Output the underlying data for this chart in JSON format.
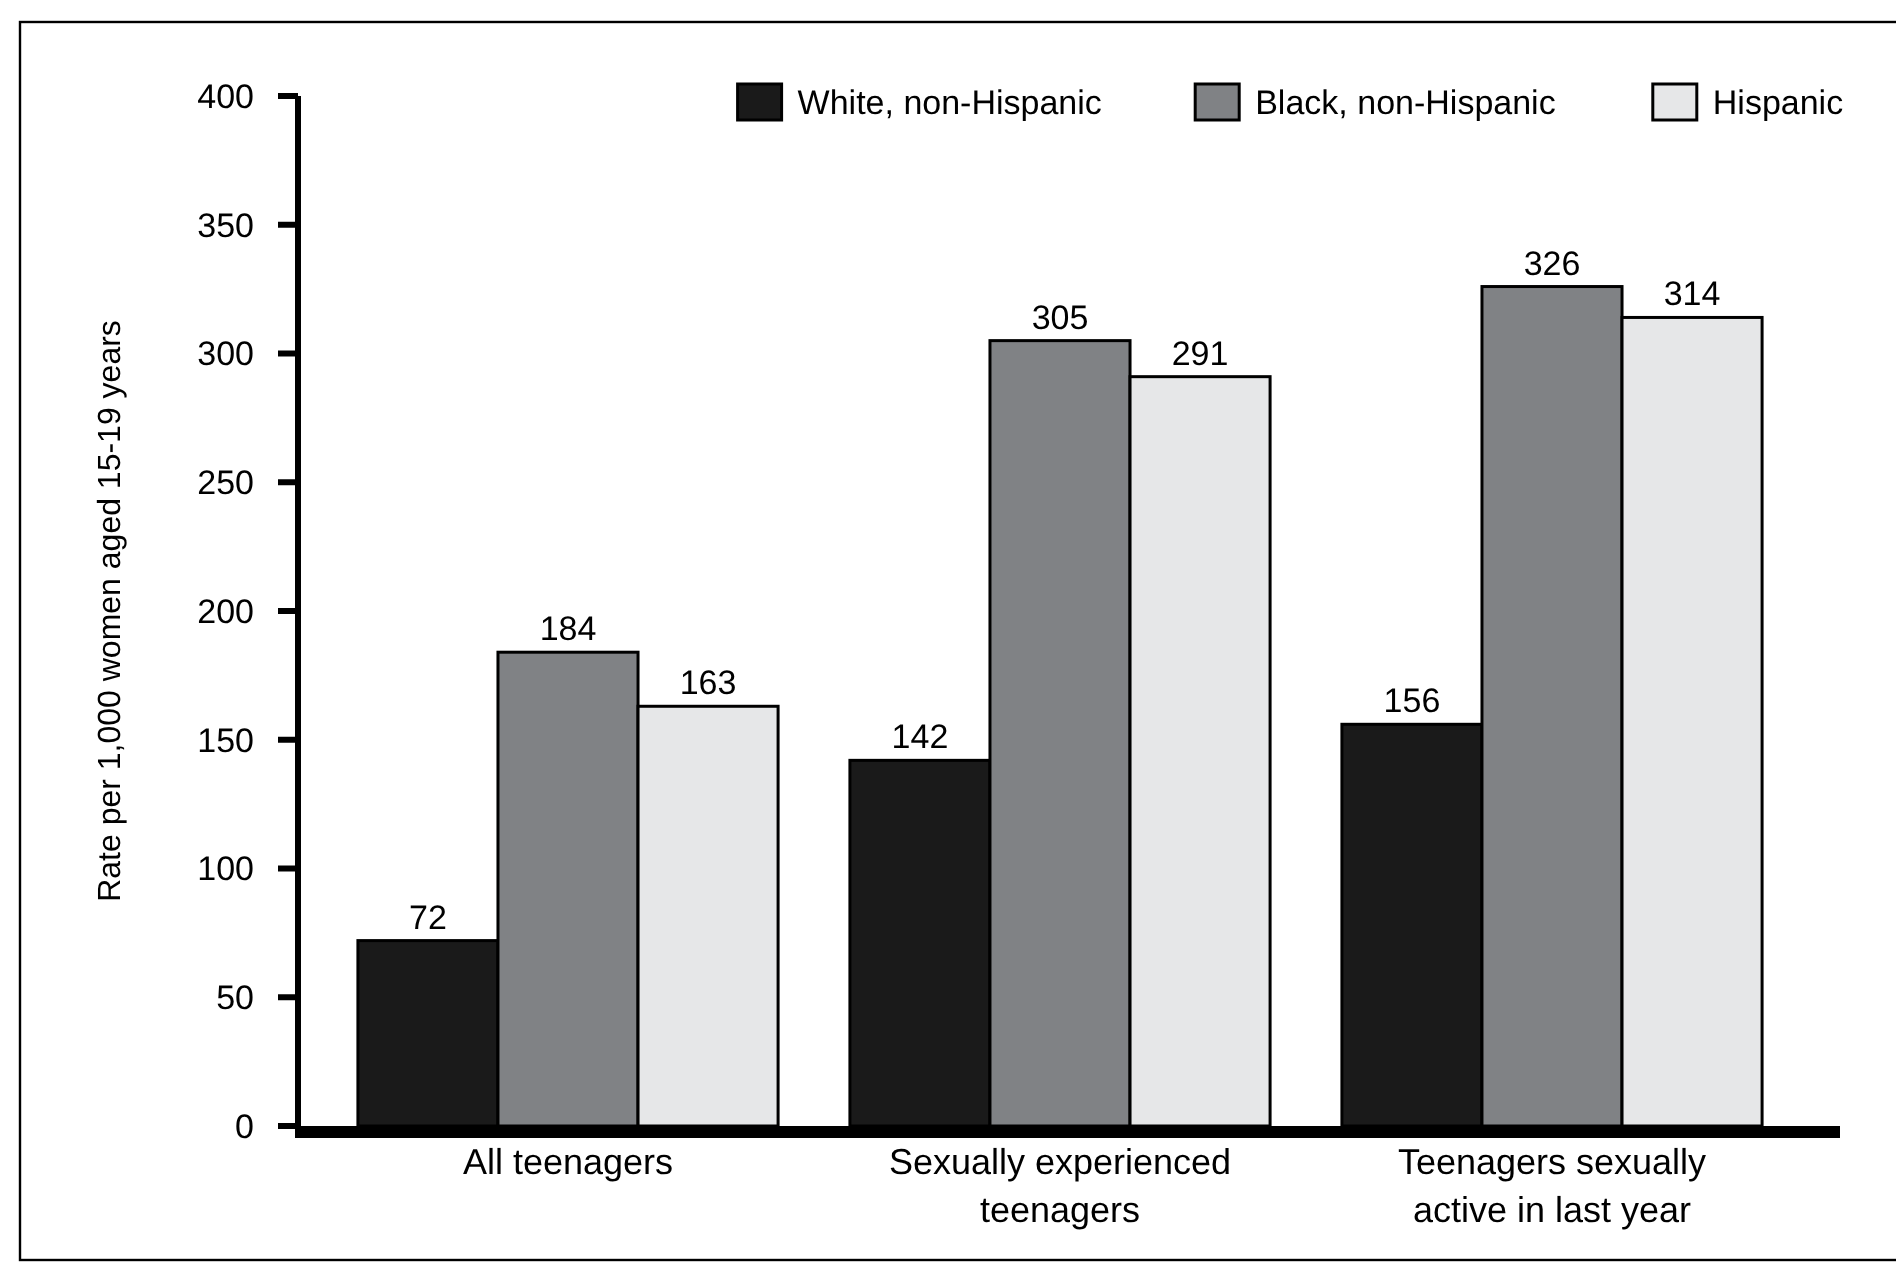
{
  "chart_data": {
    "type": "bar",
    "ylabel": "Rate per 1,000 women aged 15-19 years",
    "categories": [
      "All teenagers",
      "Sexually experienced teenagers",
      "Teenagers sexually active in last year"
    ],
    "series": [
      {
        "name": "White, non-Hispanic",
        "color": "#1a1a1a",
        "values": [
          72,
          142,
          156
        ]
      },
      {
        "name": "Black, non-Hispanic",
        "color": "#808285",
        "values": [
          184,
          305,
          326
        ]
      },
      {
        "name": "Hispanic",
        "color": "#e6e7e8",
        "values": [
          163,
          291,
          314
        ]
      }
    ],
    "ylim": [
      0,
      400
    ],
    "yticks": [
      0,
      50,
      100,
      150,
      200,
      250,
      300,
      350,
      400
    ],
    "data_labels": true,
    "legend": "top right",
    "grid": false
  }
}
